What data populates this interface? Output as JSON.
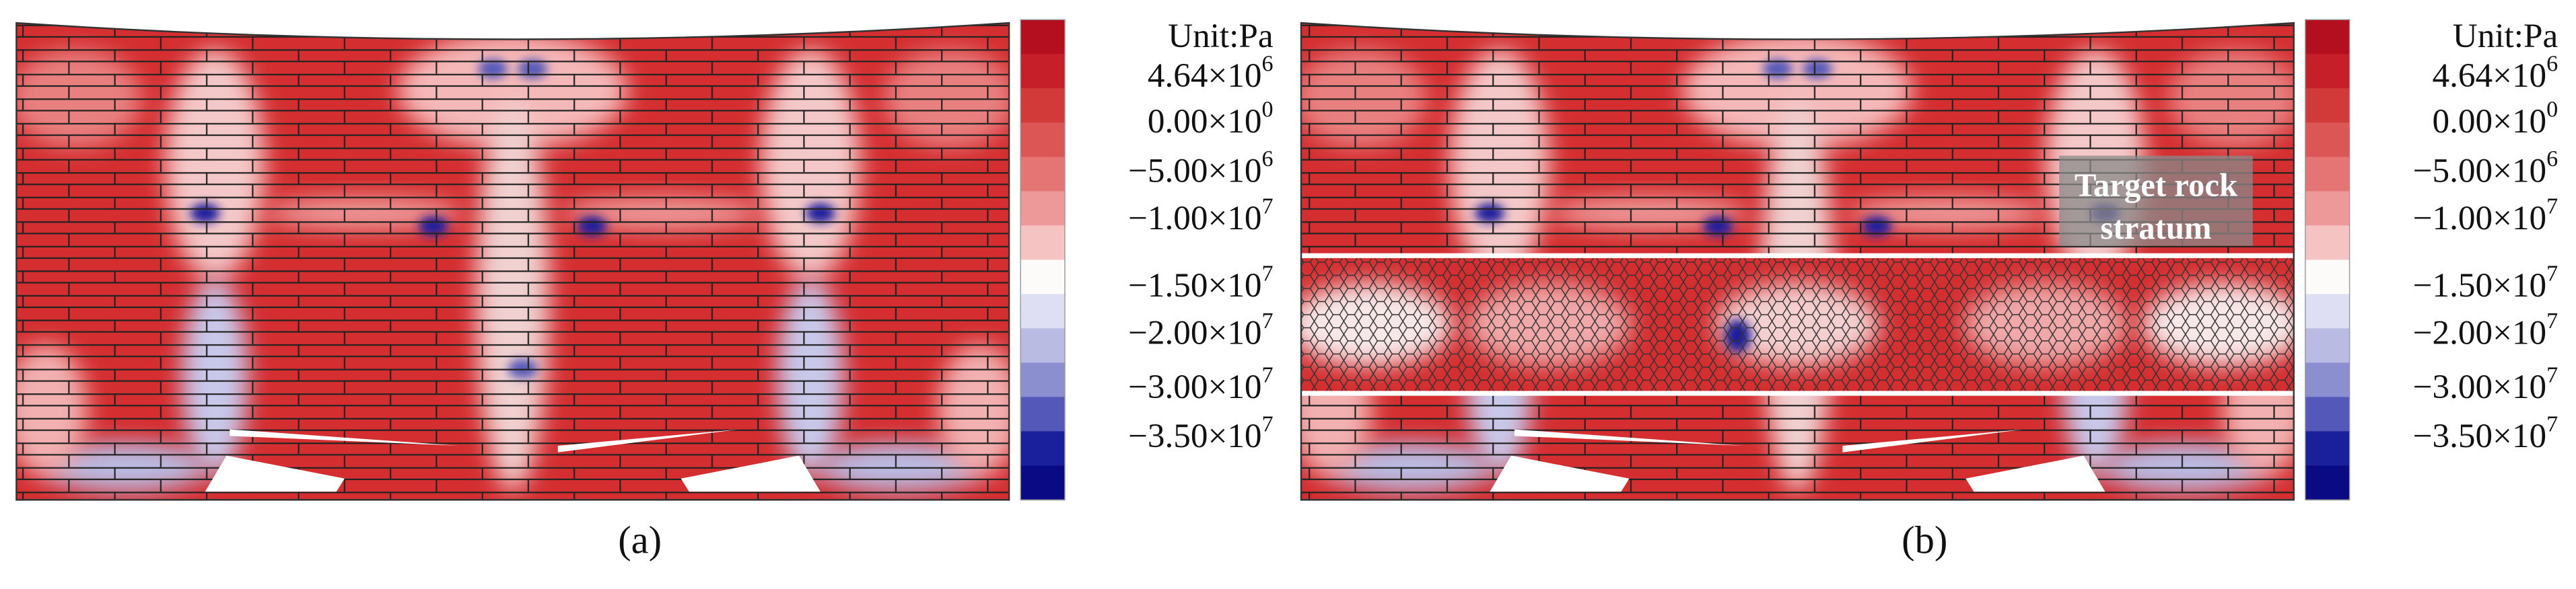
{
  "panels": [
    {
      "label": "(a)",
      "colorbar": {
        "unit": "Unit:Pa",
        "ticks": [
          {
            "mantissa": "4.64",
            "base": "×10",
            "exponent": "6"
          },
          {
            "mantissa": "0.00",
            "base": "×10",
            "exponent": "0"
          },
          {
            "mantissa": "−5.00",
            "base": "×10",
            "exponent": "6"
          },
          {
            "mantissa": "−1.00",
            "base": "×10",
            "exponent": "7"
          },
          {
            "mantissa": "−1.50",
            "base": "×10",
            "exponent": "7"
          },
          {
            "mantissa": "−2.00",
            "base": "×10",
            "exponent": "7"
          },
          {
            "mantissa": "−3.00",
            "base": "×10",
            "exponent": "7"
          },
          {
            "mantissa": "−3.50",
            "base": "×10",
            "exponent": "7"
          }
        ]
      }
    },
    {
      "label": "(b)",
      "annotation": [
        "Target rock",
        "stratum"
      ],
      "colorbar": {
        "unit": "Unit:Pa",
        "ticks": [
          {
            "mantissa": "4.64",
            "base": "×10",
            "exponent": "6"
          },
          {
            "mantissa": "0.00",
            "base": "×10",
            "exponent": "0"
          },
          {
            "mantissa": "−5.00",
            "base": "×10",
            "exponent": "6"
          },
          {
            "mantissa": "−1.00",
            "base": "×10",
            "exponent": "7"
          },
          {
            "mantissa": "−1.50",
            "base": "×10",
            "exponent": "7"
          },
          {
            "mantissa": "−2.00",
            "base": "×10",
            "exponent": "7"
          },
          {
            "mantissa": "−3.00",
            "base": "×10",
            "exponent": "7"
          },
          {
            "mantissa": "−3.50",
            "base": "×10",
            "exponent": "7"
          }
        ]
      }
    }
  ]
}
